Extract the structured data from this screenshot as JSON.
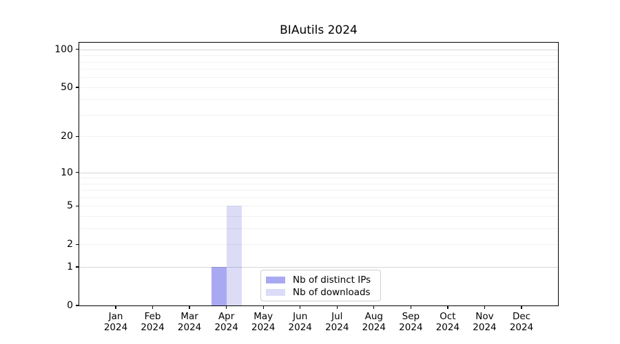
{
  "chart_data": {
    "type": "bar",
    "title": "BIAutils 2024",
    "categories": [
      "Jan",
      "Feb",
      "Mar",
      "Apr",
      "May",
      "Jun",
      "Jul",
      "Aug",
      "Sep",
      "Oct",
      "Nov",
      "Dec"
    ],
    "category_year": "2024",
    "series": [
      {
        "name": "Nb of distinct IPs",
        "color": "#a9a9f3",
        "values": [
          0,
          0,
          0,
          1,
          0,
          0,
          0,
          0,
          0,
          0,
          0,
          0
        ]
      },
      {
        "name": "Nb of downloads",
        "color": "#dcdcf7",
        "values": [
          0,
          0,
          0,
          5,
          0,
          0,
          0,
          0,
          0,
          0,
          0,
          0
        ]
      }
    ],
    "y_axis": {
      "scale": "log10(1+v)",
      "ticks": [
        0,
        1,
        2,
        5,
        10,
        20,
        50,
        100
      ],
      "max": 113,
      "major_gridlines": [
        1,
        10,
        100
      ],
      "minor_gridlines": [
        2,
        3,
        4,
        5,
        6,
        7,
        8,
        9,
        20,
        30,
        40,
        50,
        60,
        70,
        80,
        90
      ]
    },
    "x_axis": {
      "year_label": "2024"
    },
    "legend": {
      "position": "inside-bottom-center"
    },
    "grid": "horizontal",
    "colors": {
      "background": "#ffffff",
      "axis": "#000000",
      "text": "#000000",
      "grid_minor": "#f1f1f1",
      "grid_major": "#d2d2d2",
      "legend_border": "#cfcfcf"
    }
  }
}
